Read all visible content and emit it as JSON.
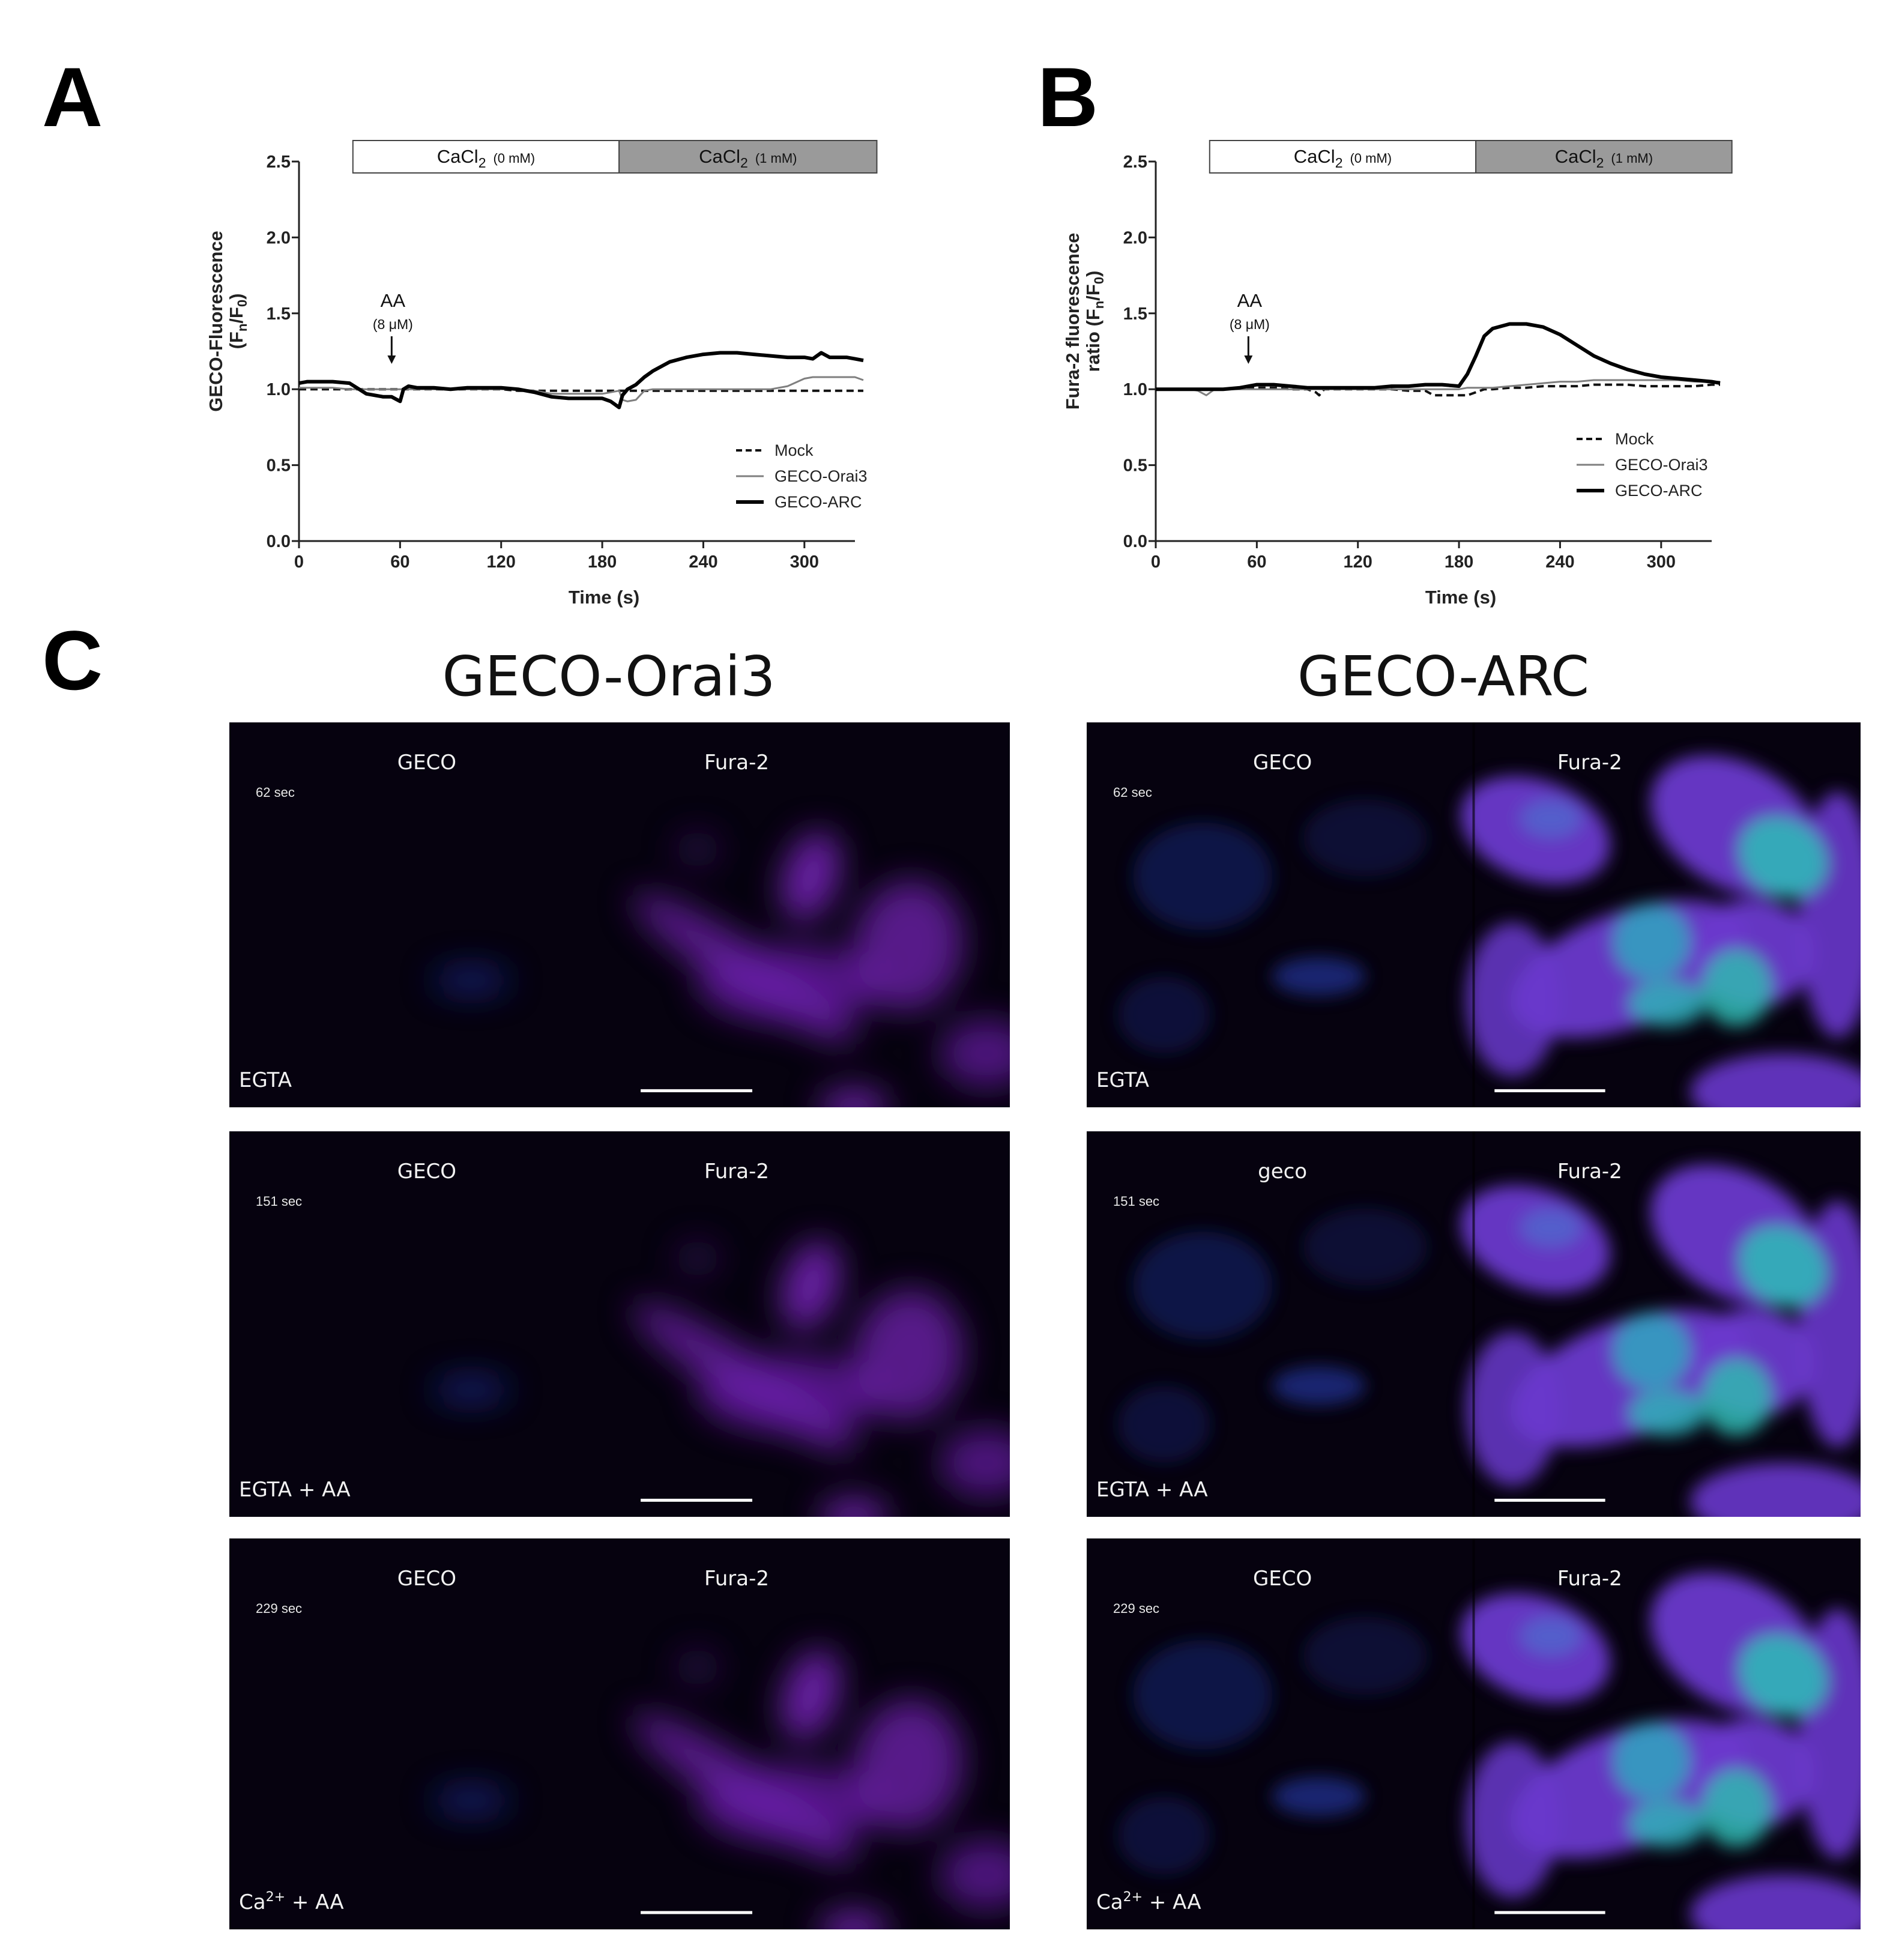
{
  "panel_labels": [
    "A",
    "B",
    "C"
  ],
  "chart_data": [
    {
      "type": "line",
      "ylabel": [
        [
          "GECO-Fluorescence"
        ],
        [
          "(F",
          "n",
          "/F",
          "0",
          ")"
        ]
      ],
      "xlabel": "Time (s)",
      "xlim": [
        0,
        330
      ],
      "ylim": [
        0,
        2.5
      ],
      "xticks": [
        0,
        60,
        120,
        180,
        240,
        300
      ],
      "yticks": [
        {
          "value": 0,
          "label": "0.0"
        },
        0.5,
        {
          "value": 1,
          "label": "1.0"
        },
        1.5,
        {
          "value": 2,
          "label": "2.0"
        },
        2.5
      ],
      "segments": [
        {
          "label": [
            "CaCl",
            "2",
            "(0 mM)"
          ],
          "start": 32,
          "end": 190,
          "color": "#ffffff"
        },
        {
          "label": [
            "CaCl",
            "2",
            "(1 mM)"
          ],
          "start": 190,
          "end": 343,
          "color": "#9a9a9a"
        }
      ],
      "annotation": {
        "text": "AA",
        "subtext": "(8 μM)",
        "x": 55
      },
      "legend": "lower right",
      "x": [
        0,
        5,
        10,
        15,
        20,
        30,
        40,
        45,
        50,
        55,
        60,
        62,
        65,
        70,
        80,
        90,
        100,
        110,
        120,
        130,
        140,
        150,
        160,
        170,
        180,
        185,
        190,
        192,
        195,
        200,
        205,
        210,
        220,
        230,
        240,
        250,
        260,
        270,
        280,
        290,
        300,
        305,
        310,
        315,
        320,
        325,
        330,
        335
      ],
      "series": [
        {
          "name": "Mock",
          "color": "#111111",
          "style": "dashed",
          "width": 4,
          "values": [
            1.0,
            1.0,
            1.0,
            1.0,
            1.0,
            1.0,
            1.0,
            1.0,
            1.0,
            1.0,
            1.0,
            1.0,
            1.0,
            1.0,
            1.0,
            1.0,
            1.0,
            1.0,
            1.0,
            0.99,
            0.99,
            0.99,
            0.99,
            0.99,
            0.99,
            0.99,
            0.99,
            0.99,
            0.99,
            0.99,
            0.99,
            0.99,
            0.99,
            0.99,
            0.99,
            0.99,
            0.99,
            0.99,
            0.99,
            0.99,
            0.99,
            0.99,
            0.99,
            0.99,
            0.99,
            0.99,
            0.99,
            0.99
          ]
        },
        {
          "name": "GECO-Orai3",
          "color": "#7f7f7f",
          "style": "solid",
          "width": 3,
          "values": [
            1.01,
            1.01,
            1.01,
            1.01,
            1.01,
            1.0,
            1.0,
            1.0,
            1.0,
            1.0,
            1.0,
            1.0,
            1.0,
            1.0,
            1.0,
            1.0,
            1.0,
            1.0,
            1.0,
            1.0,
            0.99,
            0.97,
            0.97,
            0.97,
            0.97,
            0.98,
            0.99,
            0.93,
            0.92,
            0.93,
            0.99,
            1.0,
            1.0,
            1.0,
            1.0,
            1.0,
            1.0,
            1.0,
            1.0,
            1.02,
            1.07,
            1.08,
            1.08,
            1.08,
            1.08,
            1.08,
            1.08,
            1.06
          ]
        },
        {
          "name": "GECO-ARC",
          "color": "#000000",
          "style": "solid",
          "width": 6,
          "values": [
            1.04,
            1.05,
            1.05,
            1.05,
            1.05,
            1.04,
            0.97,
            0.96,
            0.95,
            0.95,
            0.92,
            1.0,
            1.02,
            1.01,
            1.01,
            1.0,
            1.01,
            1.01,
            1.01,
            1.0,
            0.98,
            0.95,
            0.94,
            0.94,
            0.94,
            0.92,
            0.88,
            0.96,
            1.0,
            1.03,
            1.08,
            1.12,
            1.18,
            1.21,
            1.23,
            1.24,
            1.24,
            1.23,
            1.22,
            1.21,
            1.21,
            1.2,
            1.24,
            1.21,
            1.21,
            1.21,
            1.2,
            1.19
          ]
        }
      ]
    },
    {
      "type": "line",
      "ylabel": [
        [
          "Fura-2 fluorescence"
        ],
        [
          "ratio (F",
          "n",
          "/F",
          "0",
          ")"
        ]
      ],
      "xlabel": "Time (s)",
      "xlim": [
        0,
        330
      ],
      "ylim": [
        0,
        2.5
      ],
      "xticks": [
        0,
        60,
        120,
        180,
        240,
        300
      ],
      "yticks": [
        {
          "value": 0,
          "label": "0.0"
        },
        0.5,
        {
          "value": 1,
          "label": "1.0"
        },
        1.5,
        {
          "value": 2,
          "label": "2.0"
        },
        2.5
      ],
      "segments": [
        {
          "label": [
            "CaCl",
            "2",
            "(0 mM)"
          ],
          "start": 32,
          "end": 190,
          "color": "#ffffff"
        },
        {
          "label": [
            "CaCl",
            "2",
            "(1 mM)"
          ],
          "start": 190,
          "end": 342,
          "color": "#9a9a9a"
        }
      ],
      "annotation": {
        "text": "AA",
        "subtext": "(8 μM)",
        "x": 55
      },
      "legend": "lower right",
      "x": [
        0,
        10,
        20,
        25,
        30,
        35,
        40,
        50,
        60,
        70,
        80,
        90,
        95,
        97,
        100,
        110,
        120,
        130,
        140,
        150,
        160,
        165,
        170,
        180,
        185,
        190,
        195,
        200,
        210,
        220,
        230,
        240,
        250,
        260,
        270,
        280,
        290,
        300,
        310,
        320,
        330,
        335
      ],
      "series": [
        {
          "name": "Mock",
          "color": "#111111",
          "style": "dashed",
          "width": 4,
          "values": [
            1.0,
            1.0,
            1.0,
            1.0,
            1.0,
            1.0,
            1.0,
            1.01,
            1.01,
            1.01,
            1.0,
            1.0,
            0.98,
            0.96,
            1.0,
            1.0,
            1.0,
            1.0,
            1.0,
            0.99,
            0.99,
            0.96,
            0.96,
            0.96,
            0.96,
            0.98,
            1.0,
            1.0,
            1.01,
            1.01,
            1.02,
            1.02,
            1.02,
            1.03,
            1.03,
            1.03,
            1.02,
            1.02,
            1.02,
            1.02,
            1.03,
            1.03
          ]
        },
        {
          "name": "GECO-Orai3",
          "color": "#7f7f7f",
          "style": "solid",
          "width": 3,
          "values": [
            1.0,
            1.0,
            1.0,
            0.99,
            0.96,
            1.0,
            1.0,
            1.0,
            1.0,
            1.0,
            1.0,
            1.0,
            1.0,
            1.0,
            1.0,
            1.0,
            1.0,
            1.0,
            1.0,
            1.0,
            1.0,
            1.0,
            1.0,
            1.0,
            1.01,
            1.01,
            1.01,
            1.01,
            1.02,
            1.03,
            1.04,
            1.05,
            1.05,
            1.06,
            1.06,
            1.06,
            1.06,
            1.06,
            1.06,
            1.05,
            1.05,
            1.05
          ]
        },
        {
          "name": "GECO-ARC",
          "color": "#000000",
          "style": "solid",
          "width": 6,
          "values": [
            1.0,
            1.0,
            1.0,
            1.0,
            1.0,
            1.0,
            1.0,
            1.01,
            1.03,
            1.03,
            1.02,
            1.01,
            1.01,
            1.01,
            1.01,
            1.01,
            1.01,
            1.01,
            1.02,
            1.02,
            1.03,
            1.03,
            1.03,
            1.02,
            1.1,
            1.22,
            1.35,
            1.4,
            1.43,
            1.43,
            1.41,
            1.36,
            1.29,
            1.22,
            1.17,
            1.13,
            1.1,
            1.08,
            1.07,
            1.06,
            1.05,
            1.04
          ]
        }
      ]
    }
  ],
  "image_panel": {
    "columns": [
      {
        "title": "GECO-Orai3",
        "rows": [
          {
            "left": "GECO",
            "right": "Fura-2",
            "time": "62 sec",
            "condition": [
              "EGTA"
            ]
          },
          {
            "left": "GECO",
            "right": "Fura-2",
            "time": "151 sec",
            "condition": [
              "EGTA + AA"
            ]
          },
          {
            "left": "GECO",
            "right": "Fura-2",
            "time": "229 sec",
            "condition": [
              "Ca",
              "2+",
              " + AA"
            ]
          }
        ]
      },
      {
        "title": "GECO-ARC",
        "rows": [
          {
            "left": "GECO",
            "right": "Fura-2",
            "time": "62 sec",
            "condition": [
              "EGTA"
            ]
          },
          {
            "left": "geco",
            "right": "Fura-2",
            "time": "151 sec",
            "condition": [
              "EGTA + AA"
            ]
          },
          {
            "left": "GECO",
            "right": "Fura-2",
            "time": "229 sec",
            "condition": [
              "Ca",
              "2+",
              " + AA"
            ]
          }
        ]
      }
    ]
  }
}
